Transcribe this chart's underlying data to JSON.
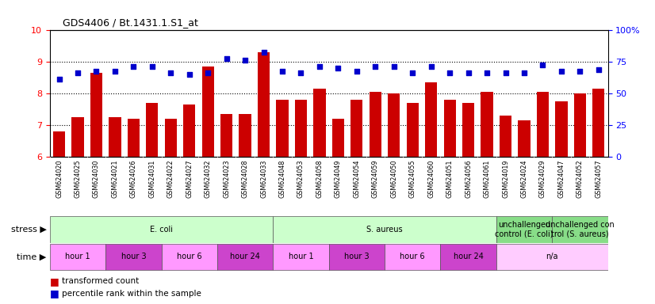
{
  "title": "GDS4406 / Bt.1431.1.S1_at",
  "samples": [
    "GSM624020",
    "GSM624025",
    "GSM624030",
    "GSM624021",
    "GSM624026",
    "GSM624031",
    "GSM624022",
    "GSM624027",
    "GSM624032",
    "GSM624023",
    "GSM624028",
    "GSM624033",
    "GSM624048",
    "GSM624053",
    "GSM624058",
    "GSM624049",
    "GSM624054",
    "GSM624059",
    "GSM624050",
    "GSM624055",
    "GSM624060",
    "GSM624051",
    "GSM624056",
    "GSM624061",
    "GSM624019",
    "GSM624024",
    "GSM624029",
    "GSM624047",
    "GSM624052",
    "GSM624057"
  ],
  "bar_values": [
    6.8,
    7.25,
    8.65,
    7.25,
    7.2,
    7.7,
    7.2,
    7.65,
    8.85,
    7.35,
    7.35,
    9.3,
    7.8,
    7.8,
    8.15,
    7.2,
    7.8,
    8.05,
    8.0,
    7.7,
    8.35,
    7.8,
    7.7,
    8.05,
    7.3,
    7.15,
    8.05,
    7.75,
    8.0,
    8.15
  ],
  "dot_values": [
    8.45,
    8.65,
    8.7,
    8.7,
    8.85,
    8.85,
    8.65,
    8.6,
    8.65,
    9.1,
    9.05,
    9.3,
    8.7,
    8.65,
    8.85,
    8.8,
    8.7,
    8.85,
    8.85,
    8.65,
    8.85,
    8.65,
    8.65,
    8.65,
    8.65,
    8.65,
    8.9,
    8.7,
    8.7,
    8.75
  ],
  "bar_color": "#cc0000",
  "dot_color": "#0000cc",
  "ylim_left": [
    6,
    10
  ],
  "ylim_right": [
    0,
    100
  ],
  "yticks_left": [
    6,
    7,
    8,
    9,
    10
  ],
  "yticks_right": [
    0,
    25,
    50,
    75,
    100
  ],
  "stress_groups": [
    {
      "label": "E. coli",
      "start": 0,
      "end": 11,
      "color": "#ccffcc"
    },
    {
      "label": "S. aureus",
      "start": 12,
      "end": 23,
      "color": "#ccffcc"
    },
    {
      "label": "unchallenged\ncontrol (E. coli)",
      "start": 24,
      "end": 26,
      "color": "#88dd88"
    },
    {
      "label": "unchallenged con\ntrol (S. aureus)",
      "start": 27,
      "end": 29,
      "color": "#88dd88"
    }
  ],
  "time_groups": [
    {
      "label": "hour 1",
      "start": 0,
      "end": 2,
      "color": "#ff99ff"
    },
    {
      "label": "hour 3",
      "start": 3,
      "end": 5,
      "color": "#cc44cc"
    },
    {
      "label": "hour 6",
      "start": 6,
      "end": 8,
      "color": "#ff99ff"
    },
    {
      "label": "hour 24",
      "start": 9,
      "end": 11,
      "color": "#cc44cc"
    },
    {
      "label": "hour 1",
      "start": 12,
      "end": 14,
      "color": "#ff99ff"
    },
    {
      "label": "hour 3",
      "start": 15,
      "end": 17,
      "color": "#cc44cc"
    },
    {
      "label": "hour 6",
      "start": 18,
      "end": 20,
      "color": "#ff99ff"
    },
    {
      "label": "hour 24",
      "start": 21,
      "end": 23,
      "color": "#cc44cc"
    },
    {
      "label": "n/a",
      "start": 24,
      "end": 29,
      "color": "#ffccff"
    }
  ],
  "legend_bar_label": "transformed count",
  "legend_dot_label": "percentile rank within the sample",
  "stress_label": "stress",
  "time_label": "time",
  "xtick_bg_color": "#cccccc",
  "plot_bg_color": "#ffffff"
}
